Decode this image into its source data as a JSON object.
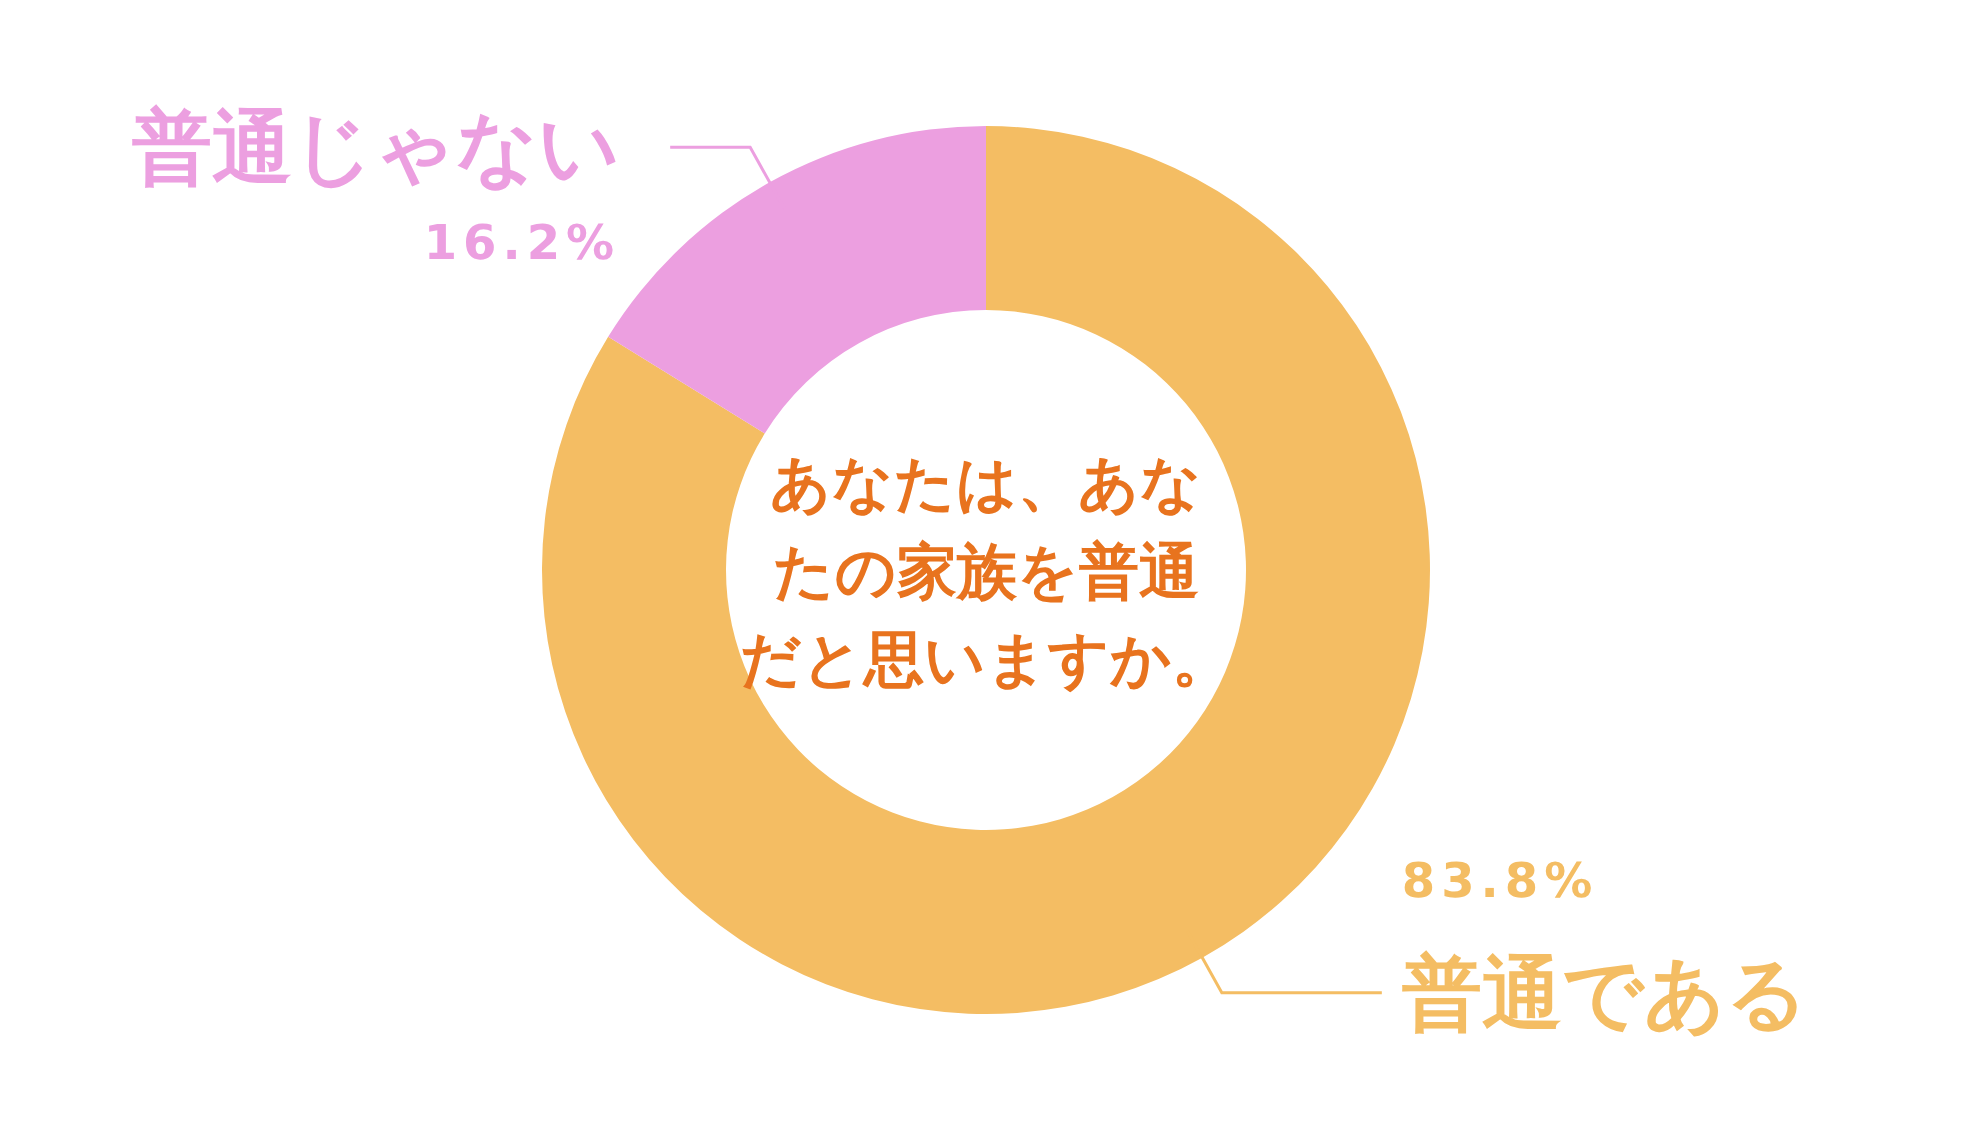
{
  "chart_data": {
    "type": "donut",
    "title": "あなたは、あなたの家族を普通だと思いますか。",
    "categories": [
      "普通である",
      "普通じゃない"
    ],
    "values": [
      83.8,
      16.2
    ],
    "value_labels": [
      "83.8%",
      "16.2%"
    ],
    "colors": [
      "#f4bd63",
      "#ec9fe0"
    ]
  }
}
